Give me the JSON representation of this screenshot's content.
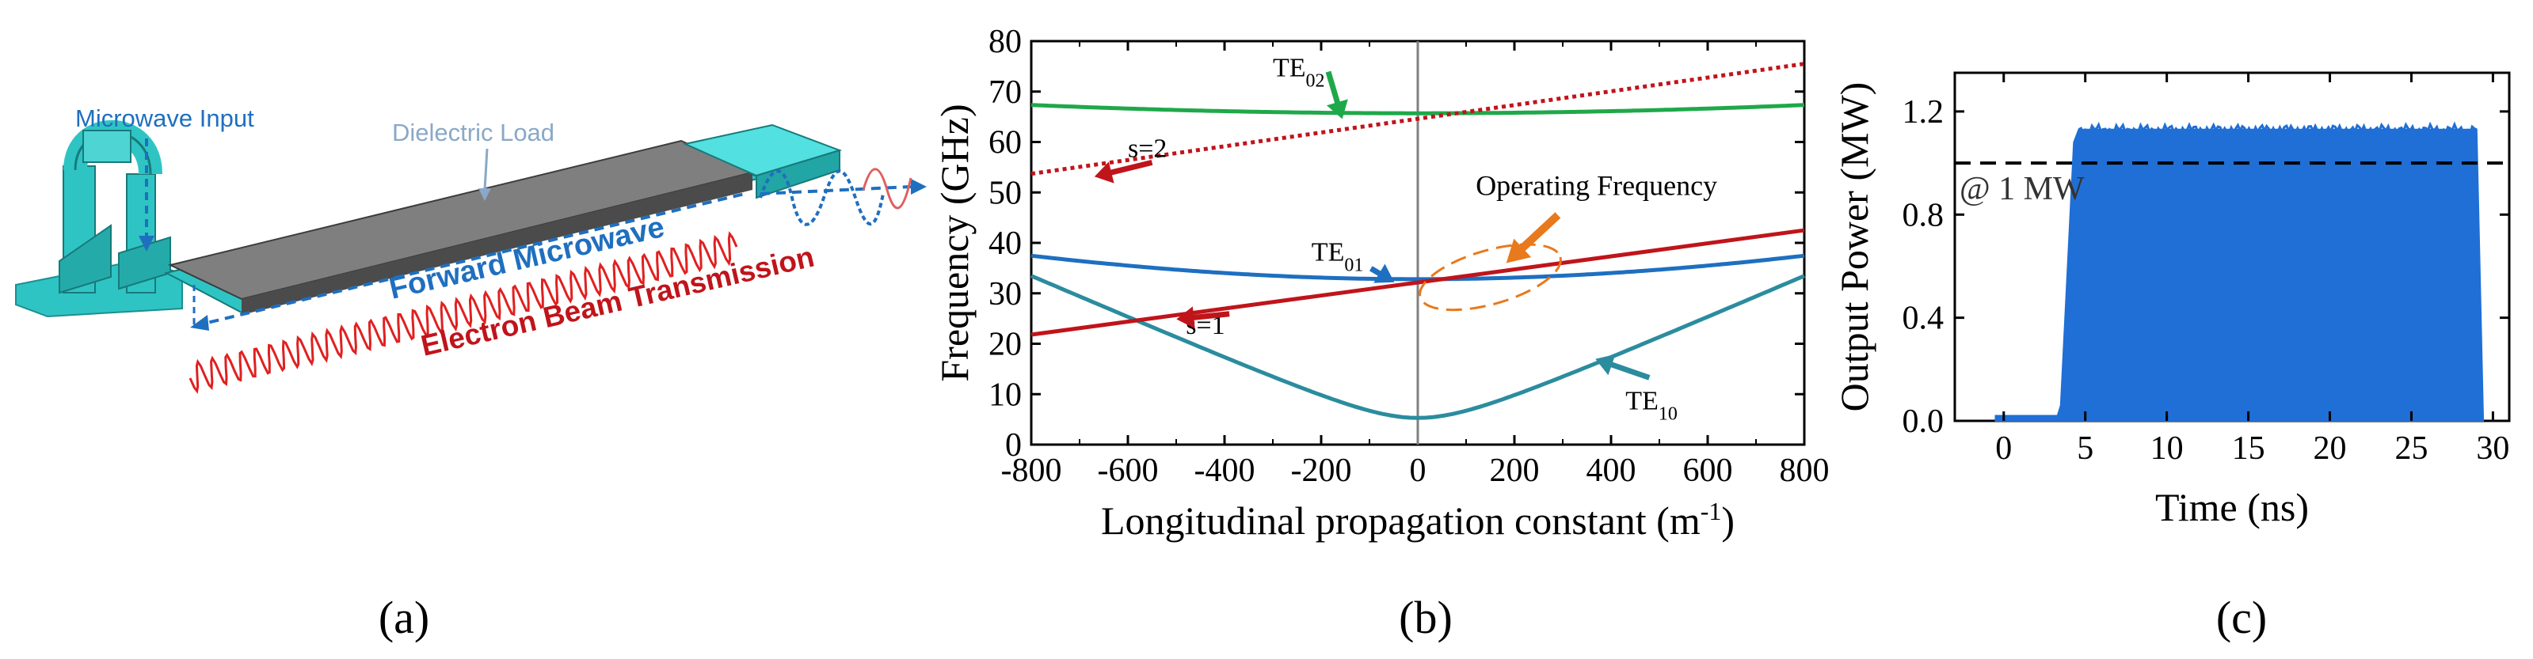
{
  "panels": {
    "a": {
      "label": "(a)"
    },
    "b": {
      "label": "(b)"
    },
    "c": {
      "label": "(c)"
    }
  },
  "diagram": {
    "labels": {
      "microwave_input": "Microwave Input",
      "dielectric_load": "Dielectric Load",
      "forward_microwave": "Forward Microwave",
      "electron_beam": "Electron Beam Transmission"
    },
    "colors": {
      "structure": "#2fc4c4",
      "load": "#7f7f7f",
      "blue_text": "#1f6fbf",
      "red_text": "#c0141b",
      "light_text": "#8aa8c8"
    }
  },
  "chart_data": [
    {
      "id": "dispersion",
      "type": "line",
      "xlabel": "Longitudinal propagation constant (m",
      "xlabel_sup": "-1",
      "xlabel_end": ")",
      "ylabel": "Frequency (GHz)",
      "xlim": [
        -800,
        800
      ],
      "ylim": [
        0,
        80
      ],
      "xticks": [
        -800,
        -600,
        -400,
        -200,
        0,
        200,
        400,
        600,
        800
      ],
      "yticks": [
        0,
        10,
        20,
        30,
        40,
        50,
        60,
        70,
        80
      ],
      "series": [
        {
          "name": "TE10",
          "label_base": "TE",
          "label_sub": "10",
          "color": "#2b8c9e",
          "style": "solid",
          "kind": "hyperbola",
          "f0": 5.3,
          "slope": 0.0413,
          "label_at": [
            430,
            7
          ]
        },
        {
          "name": "TE01",
          "label_base": "TE",
          "label_sub": "01",
          "color": "#1e6fc0",
          "style": "solid",
          "kind": "hyperbola",
          "f0": 32.8,
          "slope": 0.0226,
          "label_at": [
            -220,
            36.5
          ]
        },
        {
          "name": "TE02",
          "label_base": "TE",
          "label_sub": "02",
          "color": "#1fa84a",
          "style": "solid",
          "kind": "hyperbola",
          "f0": 65.7,
          "slope": 0.0185,
          "label_at": [
            -300,
            73
          ]
        },
        {
          "name": "s=1",
          "label_base": "s=1",
          "label_sub": "",
          "color": "#c0141b",
          "style": "solid",
          "kind": "line",
          "x": [
            -800,
            800
          ],
          "y": [
            21.8,
            42.5
          ],
          "label_at": [
            -480,
            22
          ]
        },
        {
          "name": "s=2",
          "label_base": "s=2",
          "label_sub": "",
          "color": "#c0141b",
          "style": "dotted",
          "kind": "line",
          "x": [
            -800,
            800
          ],
          "y": [
            53.7,
            75.5
          ],
          "label_at": [
            -600,
            57
          ]
        }
      ],
      "vline_x": 0,
      "annotations": [
        {
          "text": "Operating Frequency",
          "color": "#e8791d",
          "ellipse_center": [
            150,
            33.2
          ],
          "target": [
            150,
            33.2
          ]
        }
      ]
    },
    {
      "id": "output_power",
      "type": "area",
      "xlabel": "Time (ns)",
      "ylabel": "Output Power (MW)",
      "xlim": [
        -3,
        31
      ],
      "ylim": [
        0,
        1.35
      ],
      "xticks": [
        0,
        5,
        10,
        15,
        20,
        25,
        30
      ],
      "yticks": [
        0.0,
        0.4,
        0.8,
        1.2
      ],
      "ytick_labels": [
        "0.0",
        "0.4",
        "0.8",
        "1.2"
      ],
      "series": [
        {
          "name": "Output Power",
          "color": "#1f6fd6",
          "x": [
            -0.5,
            3.3,
            3.5,
            4.3,
            4.6,
            29.0,
            29.4
          ],
          "y": [
            0.02,
            0.02,
            0.06,
            1.08,
            1.13,
            1.13,
            0.0
          ]
        }
      ],
      "hline": {
        "y": 1.0,
        "label": "@ 1 MW",
        "style": "dashed"
      }
    }
  ]
}
